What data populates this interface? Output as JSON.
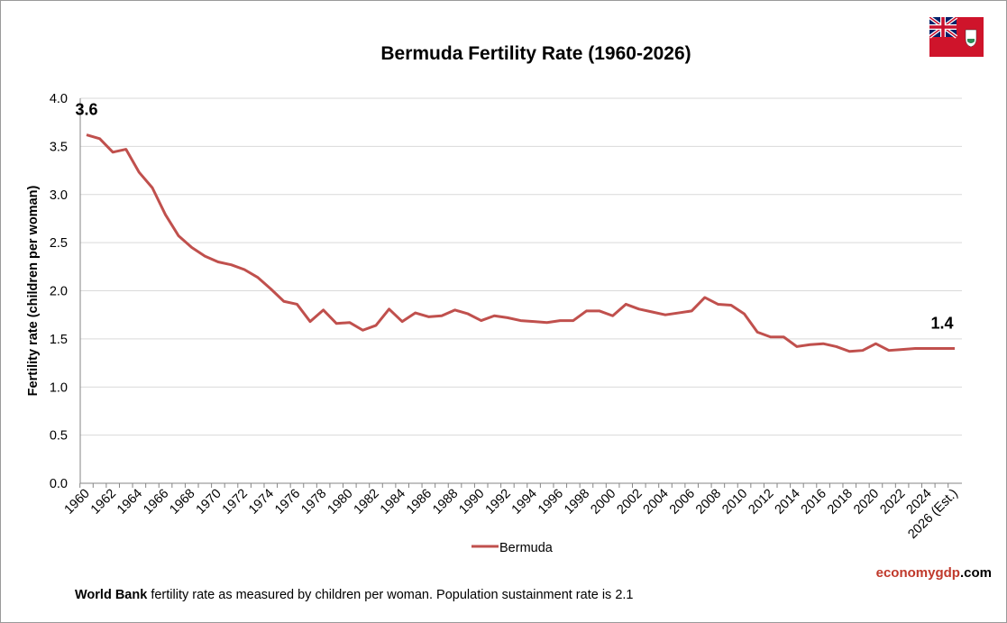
{
  "chart_data": {
    "type": "line",
    "title": "Bermuda Fertility Rate (1960-2026)",
    "ylabel": "Fertility rate (children per woman)",
    "xlabel": "",
    "ylim": [
      0,
      4.0
    ],
    "yticks": [
      "0.0",
      "0.5",
      "1.0",
      "1.5",
      "2.0",
      "2.5",
      "3.0",
      "3.5",
      "4.0"
    ],
    "grid": true,
    "legend": "bottom",
    "x": [
      1960,
      1961,
      1962,
      1963,
      1964,
      1965,
      1966,
      1967,
      1968,
      1969,
      1970,
      1971,
      1972,
      1973,
      1974,
      1975,
      1976,
      1977,
      1978,
      1979,
      1980,
      1981,
      1982,
      1983,
      1984,
      1985,
      1986,
      1987,
      1988,
      1989,
      1990,
      1991,
      1992,
      1993,
      1994,
      1995,
      1996,
      1997,
      1998,
      1999,
      2000,
      2001,
      2002,
      2003,
      2004,
      2005,
      2006,
      2007,
      2008,
      2009,
      2010,
      2011,
      2012,
      2013,
      2014,
      2015,
      2016,
      2017,
      2018,
      2019,
      2020,
      2021,
      2022,
      2023,
      2024,
      2025,
      2026
    ],
    "xtick_labels": [
      "1960",
      "1962",
      "1964",
      "1966",
      "1968",
      "1970",
      "1972",
      "1974",
      "1976",
      "1978",
      "1980",
      "1982",
      "1984",
      "1986",
      "1988",
      "1990",
      "1992",
      "1994",
      "1996",
      "1998",
      "2000",
      "2002",
      "2004",
      "2006",
      "2008",
      "2010",
      "2012",
      "2014",
      "2016",
      "2018",
      "2020",
      "2022",
      "2024",
      "2026 (Est.)"
    ],
    "series": [
      {
        "name": "Bermuda",
        "color": "#c0504d",
        "values": [
          3.62,
          3.58,
          3.44,
          3.47,
          3.23,
          3.07,
          2.79,
          2.57,
          2.45,
          2.36,
          2.3,
          2.27,
          2.22,
          2.14,
          2.02,
          1.89,
          1.86,
          1.68,
          1.8,
          1.66,
          1.67,
          1.59,
          1.64,
          1.81,
          1.68,
          1.77,
          1.73,
          1.74,
          1.8,
          1.76,
          1.69,
          1.74,
          1.72,
          1.69,
          1.68,
          1.67,
          1.69,
          1.69,
          1.79,
          1.79,
          1.74,
          1.86,
          1.81,
          1.78,
          1.75,
          1.77,
          1.79,
          1.93,
          1.86,
          1.85,
          1.76,
          1.57,
          1.52,
          1.52,
          1.42,
          1.44,
          1.45,
          1.42,
          1.37,
          1.38,
          1.45,
          1.38,
          1.39,
          1.4,
          1.4,
          1.4,
          1.4
        ]
      }
    ],
    "annotations": [
      {
        "x": 1960,
        "label": "3.6"
      },
      {
        "x": 2026,
        "label": "1.4"
      }
    ]
  },
  "footnote": {
    "bold": "World Bank",
    "text": " fertility rate as measured by children per woman.  Population sustainment rate is 2.1"
  },
  "brand": {
    "part1": "economy",
    "part2": "gdp",
    "part3": ".com",
    "color1": "#c0392b"
  },
  "flag": {
    "name": "bermuda-flag-icon"
  }
}
